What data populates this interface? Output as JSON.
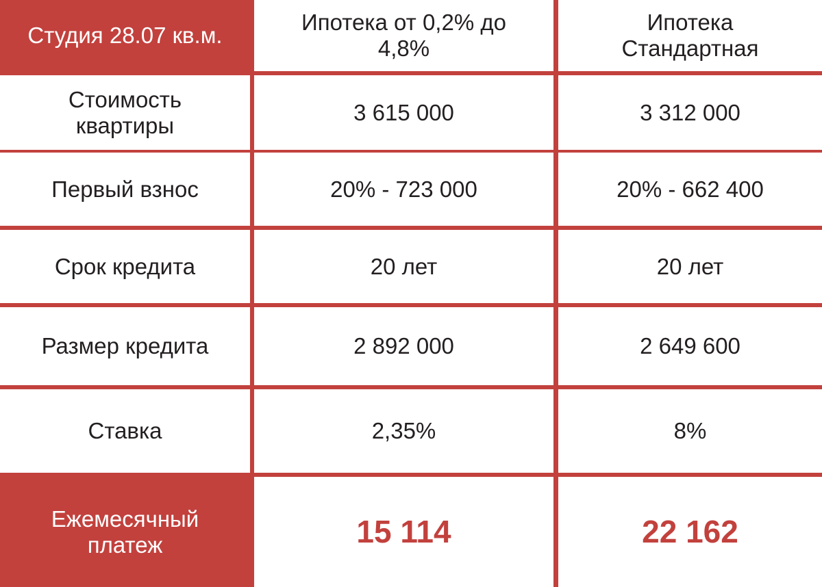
{
  "table": {
    "header": [
      "Студия 28.07 кв.м.",
      "Ипотека от 0,2% до 4,8%",
      "Ипотека Стандартная"
    ],
    "rows": [
      [
        "Стоимость квартиры",
        "3 615 000",
        "3 312 000"
      ],
      [
        "Первый взнос",
        "20% - 723 000",
        "20% - 662 400"
      ],
      [
        "Срок кредита",
        "20 лет",
        "20 лет"
      ],
      [
        "Размер кредита",
        "2 892 000",
        "2 649 600"
      ],
      [
        "Ставка",
        "2,35%",
        "8%"
      ],
      [
        "Ежемесячный платеж",
        "15 114",
        "22 162"
      ]
    ]
  }
}
